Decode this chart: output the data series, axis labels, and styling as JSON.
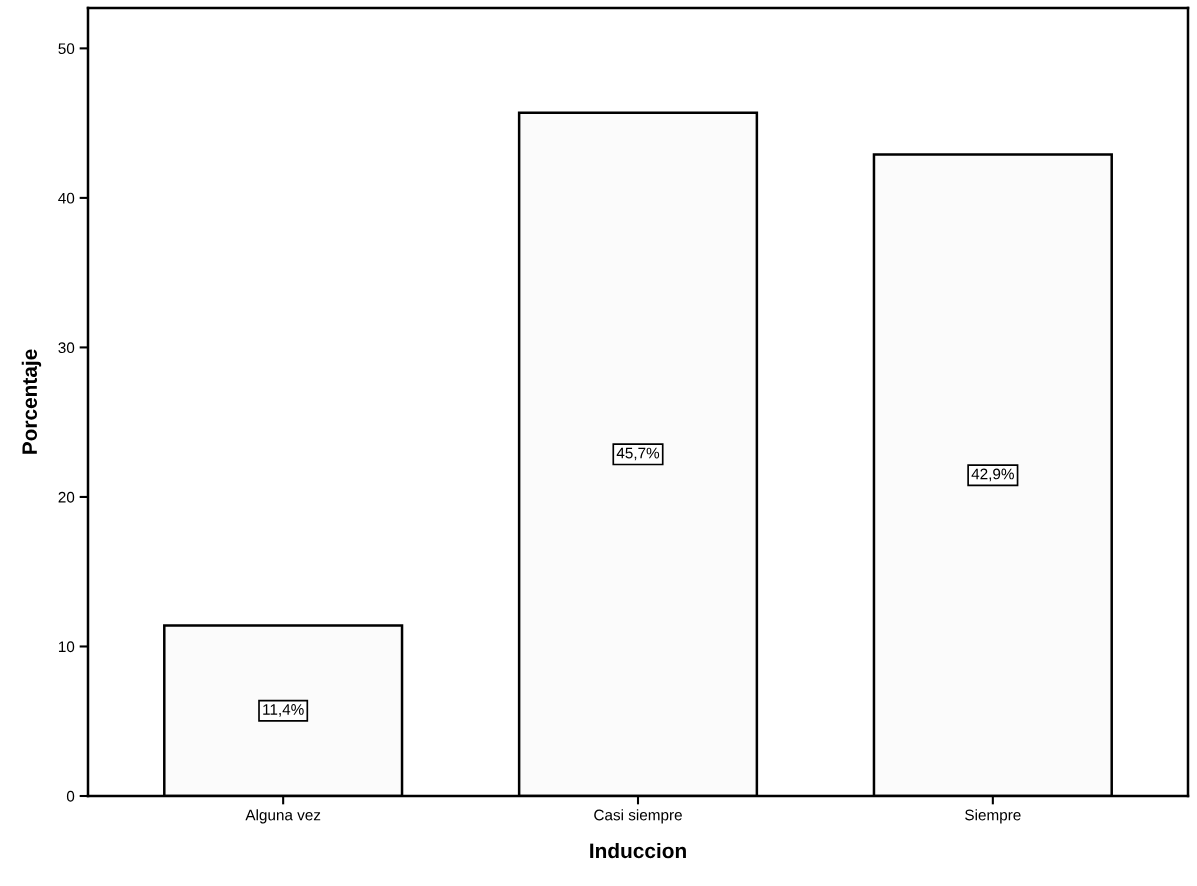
{
  "chart_data": {
    "type": "bar",
    "xlabel": "Induccion",
    "ylabel": "Porcentaje",
    "categories": [
      "Alguna vez",
      "Casi siempre",
      "Siempre"
    ],
    "values": [
      11.4,
      45.7,
      42.9
    ],
    "value_labels": [
      "11,4%",
      "45,7%",
      "42,9%"
    ],
    "color": "#fbfbfb",
    "ylim": [
      0,
      52.7
    ],
    "yticks": [
      0,
      10,
      20,
      30,
      40,
      50
    ],
    "grid": false
  }
}
